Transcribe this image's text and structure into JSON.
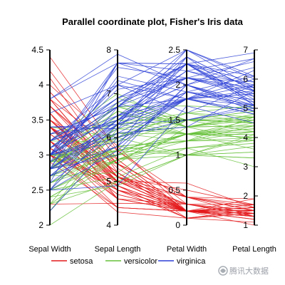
{
  "chart_data": {
    "type": "parallel-coordinates",
    "title": "Parallel coordinate plot, Fisher's Iris data",
    "axes": [
      {
        "name": "Sepal Width",
        "range": [
          2,
          4.5
        ],
        "ticks": [
          2,
          2.5,
          3,
          3.5,
          4,
          4.5
        ],
        "tick_labels": [
          "2",
          "2.5",
          "3",
          "3.5",
          "4",
          "4.5"
        ],
        "tick_side": "left"
      },
      {
        "name": "Sepal Length",
        "range": [
          4,
          8
        ],
        "ticks": [
          4,
          5,
          6,
          7,
          8
        ],
        "tick_labels": [
          "4",
          "5",
          "6",
          "7",
          "8"
        ],
        "tick_side": "left"
      },
      {
        "name": "Petal Width",
        "range": [
          0,
          2.5
        ],
        "ticks": [
          0,
          0.5,
          1,
          1.5,
          2,
          2.5
        ],
        "tick_labels": [
          "0",
          "0.5",
          "1",
          "1.5",
          "2",
          "2.5"
        ],
        "tick_side": "left"
      },
      {
        "name": "Petal Length",
        "range": [
          1,
          7
        ],
        "ticks": [
          1,
          2,
          3,
          4,
          5,
          6,
          7
        ],
        "tick_labels": [
          "1",
          "2",
          "3",
          "4",
          "5",
          "6",
          "7"
        ],
        "tick_side": "right"
      }
    ],
    "legend": {
      "position": "bottom"
    },
    "grid": false,
    "series": [
      {
        "name": "setosa",
        "color": "#e41a1c",
        "rows": [
          [
            3.5,
            5.1,
            0.2,
            1.4
          ],
          [
            3.0,
            4.9,
            0.2,
            1.4
          ],
          [
            3.2,
            4.7,
            0.2,
            1.3
          ],
          [
            3.1,
            4.6,
            0.2,
            1.5
          ],
          [
            3.6,
            5.0,
            0.2,
            1.4
          ],
          [
            3.9,
            5.4,
            0.4,
            1.7
          ],
          [
            3.4,
            4.6,
            0.3,
            1.4
          ],
          [
            3.4,
            5.0,
            0.2,
            1.5
          ],
          [
            2.9,
            4.4,
            0.2,
            1.4
          ],
          [
            3.1,
            4.9,
            0.1,
            1.5
          ],
          [
            3.7,
            5.4,
            0.2,
            1.5
          ],
          [
            3.4,
            4.8,
            0.2,
            1.6
          ],
          [
            3.0,
            4.8,
            0.1,
            1.4
          ],
          [
            3.0,
            4.3,
            0.1,
            1.1
          ],
          [
            4.0,
            5.8,
            0.2,
            1.2
          ],
          [
            4.4,
            5.7,
            0.4,
            1.5
          ],
          [
            3.9,
            5.4,
            0.4,
            1.3
          ],
          [
            3.5,
            5.1,
            0.3,
            1.4
          ],
          [
            3.8,
            5.7,
            0.3,
            1.7
          ],
          [
            3.8,
            5.1,
            0.3,
            1.5
          ],
          [
            3.4,
            5.4,
            0.2,
            1.7
          ],
          [
            3.7,
            5.1,
            0.4,
            1.5
          ],
          [
            3.6,
            4.6,
            0.2,
            1.0
          ],
          [
            3.3,
            5.1,
            0.5,
            1.7
          ],
          [
            3.4,
            4.8,
            0.2,
            1.9
          ],
          [
            3.0,
            5.0,
            0.2,
            1.6
          ],
          [
            3.4,
            5.0,
            0.4,
            1.6
          ],
          [
            3.5,
            5.2,
            0.2,
            1.5
          ],
          [
            3.4,
            5.2,
            0.2,
            1.4
          ],
          [
            3.2,
            4.7,
            0.2,
            1.6
          ],
          [
            3.1,
            4.8,
            0.2,
            1.6
          ],
          [
            3.4,
            5.4,
            0.4,
            1.5
          ],
          [
            4.1,
            5.2,
            0.1,
            1.5
          ],
          [
            4.2,
            5.5,
            0.2,
            1.4
          ],
          [
            3.1,
            4.9,
            0.2,
            1.5
          ],
          [
            3.2,
            5.0,
            0.2,
            1.2
          ],
          [
            3.5,
            5.5,
            0.2,
            1.3
          ],
          [
            3.6,
            4.9,
            0.1,
            1.4
          ],
          [
            3.0,
            4.4,
            0.2,
            1.3
          ],
          [
            3.4,
            5.1,
            0.2,
            1.5
          ],
          [
            3.5,
            5.0,
            0.3,
            1.3
          ],
          [
            2.3,
            4.5,
            0.3,
            1.3
          ],
          [
            3.2,
            4.4,
            0.2,
            1.3
          ],
          [
            3.5,
            5.0,
            0.6,
            1.6
          ],
          [
            3.8,
            5.1,
            0.4,
            1.9
          ],
          [
            3.0,
            4.8,
            0.3,
            1.4
          ],
          [
            3.8,
            5.1,
            0.2,
            1.6
          ],
          [
            3.2,
            4.6,
            0.2,
            1.4
          ],
          [
            3.7,
            5.3,
            0.2,
            1.5
          ],
          [
            3.3,
            5.0,
            0.2,
            1.4
          ]
        ]
      },
      {
        "name": "versicolor",
        "color": "#66c13a",
        "rows": [
          [
            3.2,
            7.0,
            1.4,
            4.7
          ],
          [
            3.2,
            6.4,
            1.5,
            4.5
          ],
          [
            3.1,
            6.9,
            1.5,
            4.9
          ],
          [
            2.3,
            5.5,
            1.3,
            4.0
          ],
          [
            2.8,
            6.5,
            1.5,
            4.6
          ],
          [
            2.8,
            5.7,
            1.3,
            4.5
          ],
          [
            3.3,
            6.3,
            1.6,
            4.7
          ],
          [
            2.4,
            4.9,
            1.0,
            3.3
          ],
          [
            2.9,
            6.6,
            1.3,
            4.6
          ],
          [
            2.7,
            5.2,
            1.4,
            3.9
          ],
          [
            2.0,
            5.0,
            1.0,
            3.5
          ],
          [
            3.0,
            5.9,
            1.5,
            4.2
          ],
          [
            2.2,
            6.0,
            1.0,
            4.0
          ],
          [
            2.9,
            6.1,
            1.4,
            4.7
          ],
          [
            2.9,
            5.6,
            1.3,
            3.6
          ],
          [
            3.1,
            6.7,
            1.4,
            4.4
          ],
          [
            3.0,
            5.6,
            1.5,
            4.5
          ],
          [
            2.7,
            5.8,
            1.0,
            4.1
          ],
          [
            2.2,
            6.2,
            1.5,
            4.5
          ],
          [
            2.5,
            5.6,
            1.1,
            3.9
          ],
          [
            3.2,
            5.9,
            1.8,
            4.8
          ],
          [
            2.8,
            6.1,
            1.3,
            4.0
          ],
          [
            2.5,
            6.3,
            1.5,
            4.9
          ],
          [
            2.8,
            6.1,
            1.2,
            4.7
          ],
          [
            2.9,
            6.4,
            1.3,
            4.3
          ],
          [
            3.0,
            6.6,
            1.4,
            4.4
          ],
          [
            2.8,
            6.8,
            1.4,
            4.8
          ],
          [
            3.0,
            6.7,
            1.7,
            5.0
          ],
          [
            2.9,
            6.0,
            1.5,
            4.5
          ],
          [
            2.6,
            5.7,
            1.0,
            3.5
          ],
          [
            2.4,
            5.5,
            1.1,
            3.8
          ],
          [
            2.4,
            5.5,
            1.0,
            3.7
          ],
          [
            2.7,
            5.8,
            1.2,
            3.9
          ],
          [
            2.7,
            6.0,
            1.6,
            5.1
          ],
          [
            3.0,
            5.4,
            1.5,
            4.5
          ],
          [
            3.4,
            6.0,
            1.6,
            4.5
          ],
          [
            3.1,
            6.7,
            1.5,
            4.7
          ],
          [
            2.3,
            6.3,
            1.3,
            4.4
          ],
          [
            3.0,
            5.6,
            1.3,
            4.1
          ],
          [
            2.5,
            5.5,
            1.3,
            4.0
          ],
          [
            2.6,
            5.5,
            1.2,
            4.4
          ],
          [
            3.0,
            6.1,
            1.4,
            4.6
          ],
          [
            2.6,
            5.8,
            1.2,
            4.0
          ],
          [
            2.3,
            5.0,
            1.0,
            3.3
          ],
          [
            2.7,
            5.6,
            1.3,
            4.2
          ],
          [
            3.0,
            5.7,
            1.2,
            4.2
          ],
          [
            2.9,
            5.7,
            1.3,
            4.2
          ],
          [
            2.9,
            6.2,
            1.3,
            4.3
          ],
          [
            2.5,
            5.1,
            1.1,
            3.0
          ],
          [
            2.8,
            5.7,
            1.3,
            4.1
          ]
        ]
      },
      {
        "name": "virginica",
        "color": "#2b3fd6",
        "rows": [
          [
            3.3,
            6.3,
            2.5,
            6.0
          ],
          [
            2.7,
            5.8,
            1.9,
            5.1
          ],
          [
            3.0,
            7.1,
            2.1,
            5.9
          ],
          [
            2.9,
            6.3,
            1.8,
            5.6
          ],
          [
            3.0,
            6.5,
            2.2,
            5.8
          ],
          [
            3.0,
            7.6,
            2.1,
            6.6
          ],
          [
            2.5,
            4.9,
            1.7,
            4.5
          ],
          [
            2.9,
            7.3,
            1.8,
            6.3
          ],
          [
            2.5,
            6.7,
            1.8,
            5.8
          ],
          [
            3.6,
            7.2,
            2.5,
            6.1
          ],
          [
            3.2,
            6.5,
            2.0,
            5.1
          ],
          [
            2.7,
            6.4,
            1.9,
            5.3
          ],
          [
            3.0,
            6.8,
            2.1,
            5.5
          ],
          [
            2.5,
            5.7,
            2.0,
            5.0
          ],
          [
            2.8,
            5.8,
            2.4,
            5.1
          ],
          [
            3.2,
            6.4,
            2.3,
            5.3
          ],
          [
            3.0,
            6.5,
            1.8,
            5.5
          ],
          [
            3.8,
            7.7,
            2.2,
            6.7
          ],
          [
            2.6,
            7.7,
            2.3,
            6.9
          ],
          [
            2.2,
            6.0,
            1.5,
            5.0
          ],
          [
            3.2,
            6.9,
            2.3,
            5.7
          ],
          [
            2.8,
            5.6,
            2.0,
            4.9
          ],
          [
            2.8,
            7.7,
            2.0,
            6.7
          ],
          [
            2.7,
            6.3,
            1.8,
            4.9
          ],
          [
            3.3,
            6.7,
            2.1,
            5.7
          ],
          [
            3.2,
            7.2,
            1.8,
            6.0
          ],
          [
            2.8,
            6.2,
            1.8,
            4.8
          ],
          [
            3.0,
            6.1,
            1.8,
            4.9
          ],
          [
            2.8,
            6.4,
            2.1,
            5.6
          ],
          [
            3.0,
            7.2,
            1.6,
            5.8
          ],
          [
            2.8,
            7.4,
            1.9,
            6.1
          ],
          [
            3.8,
            7.9,
            2.0,
            6.4
          ],
          [
            2.8,
            6.4,
            2.2,
            5.6
          ],
          [
            2.8,
            6.3,
            1.5,
            5.1
          ],
          [
            2.6,
            6.1,
            1.4,
            5.6
          ],
          [
            3.0,
            7.7,
            2.3,
            6.1
          ],
          [
            3.4,
            6.3,
            2.4,
            5.6
          ],
          [
            3.1,
            6.4,
            1.8,
            5.5
          ],
          [
            3.0,
            6.0,
            1.8,
            4.8
          ],
          [
            3.1,
            6.9,
            2.1,
            5.4
          ],
          [
            3.1,
            6.7,
            2.4,
            5.6
          ],
          [
            3.1,
            6.9,
            2.3,
            5.1
          ],
          [
            2.7,
            5.8,
            1.9,
            5.1
          ],
          [
            3.2,
            6.8,
            2.3,
            5.9
          ],
          [
            3.3,
            6.7,
            2.5,
            5.7
          ],
          [
            3.0,
            6.7,
            2.3,
            5.2
          ],
          [
            2.5,
            6.3,
            1.9,
            5.0
          ],
          [
            3.0,
            6.5,
            2.0,
            5.2
          ],
          [
            3.4,
            6.2,
            2.3,
            5.4
          ],
          [
            3.0,
            5.9,
            1.8,
            5.1
          ]
        ]
      }
    ]
  },
  "watermark": {
    "text": "腾讯大数据",
    "icon": "brand-logo-icon"
  }
}
